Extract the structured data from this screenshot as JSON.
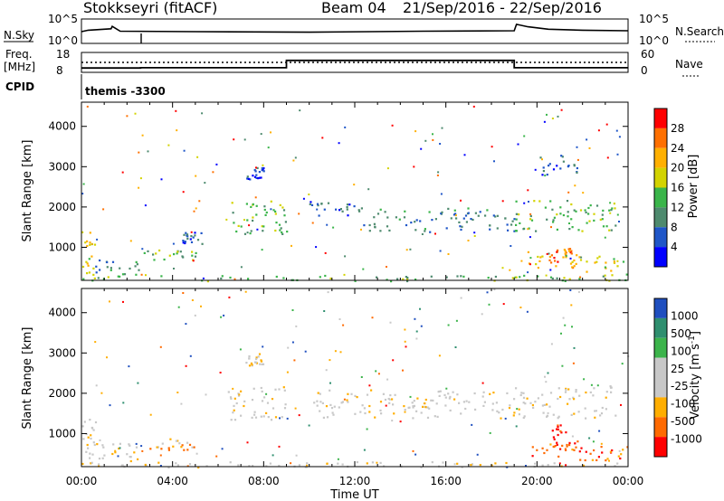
{
  "header": {
    "station": "Stokkseyri (fitACF)",
    "beam": "Beam 04",
    "date_range": "21/Sep/2016 - 22/Sep/2016"
  },
  "summary": {
    "nsky_label": "N.Sky",
    "nsky_top": "10^5",
    "nsky_bottom": "10^0",
    "nsearch_label": "N.Search",
    "freq_label": "Freq.",
    "freq_unit": "[MHz]",
    "freq_top": "18",
    "freq_bottom": "8",
    "nave_label": "Nave",
    "nave_top": "60",
    "nave_bottom": "0",
    "cpid_label": "CPID",
    "cpid_value": "themis -3300"
  },
  "x_axis": {
    "label": "Time UT",
    "ticks": [
      "00:00",
      "04:00",
      "08:00",
      "12:00",
      "16:00",
      "20:00",
      "00:00"
    ]
  },
  "colors": {
    "power": [
      "#0000ff",
      "#1f56c8",
      "#4e8a6e",
      "#3ab54a",
      "#d3d300",
      "#ffb000",
      "#ff7000",
      "#ff0000"
    ],
    "velocity": [
      "#ff0000",
      "#ff6a00",
      "#ffae00",
      "#c8c8c8",
      "#c8c8c8",
      "#3cb44b",
      "#2f8f6f",
      "#1f4fbf"
    ]
  },
  "chart_data": [
    {
      "type": "line",
      "title": "",
      "series": [
        {
          "name": "N.Sky",
          "x": [
            0,
            0.3,
            1.3,
            1.35,
            1.7,
            5,
            10,
            15,
            19,
            19.1,
            19.6,
            20.5,
            22,
            24
          ],
          "y": [
            2.4,
            2.7,
            3.0,
            3.5,
            2.5,
            2.4,
            2.3,
            2.5,
            2.6,
            3.9,
            3.4,
            2.9,
            2.7,
            2.6
          ]
        },
        {
          "name": "N.Search",
          "x": [
            0,
            24
          ],
          "y": [
            0,
            0
          ]
        }
      ],
      "xlim": [
        0,
        24
      ],
      "ylim": [
        0,
        5
      ],
      "y_ticks": [
        "10^0",
        "10^5"
      ]
    },
    {
      "type": "line",
      "series": [
        {
          "name": "Freq.",
          "x": [
            0,
            2.6,
            2.6,
            9.0,
            9.0,
            19.0,
            19.0,
            24
          ],
          "y": [
            10.2,
            10.2,
            10.3,
            10.3,
            14.0,
            14.0,
            10.3,
            10.3
          ]
        },
        {
          "name": "Nave",
          "x": [
            0,
            24
          ],
          "y": [
            30,
            30
          ]
        }
      ],
      "xlim": [
        0,
        24
      ],
      "ylim": [
        8,
        18
      ],
      "y_ticks": [
        "8",
        "18"
      ],
      "y2_ticks": [
        "0",
        "60"
      ]
    },
    {
      "type": "heatmap",
      "x": [
        0,
        24
      ],
      "xlim": [
        0,
        24
      ],
      "ylim": [
        180,
        4600
      ],
      "x_ticks": [
        "00:00",
        "04:00",
        "08:00",
        "12:00",
        "16:00",
        "20:00",
        "00:00"
      ],
      "ylabel": "Slant Range [km]",
      "y_ticks": [
        1000,
        2000,
        3000,
        4000
      ],
      "colorbar": {
        "label": "Power [dB]",
        "ticks": [
          4,
          8,
          12,
          16,
          20,
          24,
          28
        ],
        "range": [
          0,
          32
        ]
      },
      "regions": [
        {
          "t0": 0.0,
          "t1": 0.6,
          "r0": 180,
          "r1": 1500,
          "level": 4
        },
        {
          "t0": 0.6,
          "t1": 2.6,
          "r0": 300,
          "r1": 700,
          "level": 2
        },
        {
          "t0": 2.6,
          "t1": 5.1,
          "r0": 650,
          "r1": 950,
          "level": 3
        },
        {
          "t0": 4.4,
          "t1": 5.3,
          "r0": 1100,
          "r1": 1400,
          "level": 1
        },
        {
          "t0": 6.3,
          "t1": 9.0,
          "r0": 1350,
          "r1": 2200,
          "level": 3
        },
        {
          "t0": 7.2,
          "t1": 8.0,
          "r0": 2700,
          "r1": 3000,
          "level": 1
        },
        {
          "t0": 10.0,
          "t1": 12.0,
          "r0": 1800,
          "r1": 2150,
          "level": 1
        },
        {
          "t0": 12.0,
          "t1": 19.0,
          "r0": 1400,
          "r1": 2000,
          "level": 2
        },
        {
          "t0": 19.0,
          "t1": 23.5,
          "r0": 1400,
          "r1": 2200,
          "level": 3
        },
        {
          "t0": 19.5,
          "t1": 21.9,
          "r0": 500,
          "r1": 950,
          "level": 5
        },
        {
          "t0": 20.5,
          "t1": 21.5,
          "r0": 600,
          "r1": 1050,
          "level": 6
        },
        {
          "t0": 21.8,
          "t1": 24.0,
          "r0": 300,
          "r1": 800,
          "level": 4
        },
        {
          "t0": 20.0,
          "t1": 22.0,
          "r0": 2800,
          "r1": 3300,
          "level": 1
        },
        {
          "t0": 0.0,
          "t1": 24.0,
          "r0": 180,
          "r1": 320,
          "level": 3
        }
      ]
    },
    {
      "type": "heatmap",
      "x": [
        0,
        24
      ],
      "xlim": [
        0,
        24
      ],
      "ylim": [
        180,
        4600
      ],
      "x_ticks": [
        "00:00",
        "04:00",
        "08:00",
        "12:00",
        "16:00",
        "20:00",
        "00:00"
      ],
      "ylabel": "Slant Range [km]",
      "y_ticks": [
        1000,
        2000,
        3000,
        4000
      ],
      "colorbar": {
        "label": "Velocity [m s^-1]",
        "ticks": [
          1000,
          500,
          100,
          25,
          -25,
          -100,
          -500,
          -1000
        ]
      },
      "regions": [
        {
          "t0": 0.0,
          "t1": 0.6,
          "r0": 180,
          "r1": 1400,
          "level": 3
        },
        {
          "t0": 0.6,
          "t1": 2.6,
          "r0": 300,
          "r1": 800,
          "level": 3
        },
        {
          "t0": 2.6,
          "t1": 5.1,
          "r0": 600,
          "r1": 900,
          "level": 2
        },
        {
          "t0": 6.3,
          "t1": 9.0,
          "r0": 1350,
          "r1": 2200,
          "level": 3
        },
        {
          "t0": 7.2,
          "t1": 8.0,
          "r0": 2700,
          "r1": 3000,
          "level": 3
        },
        {
          "t0": 10.0,
          "t1": 19.0,
          "r0": 1400,
          "r1": 2100,
          "level": 3
        },
        {
          "t0": 19.0,
          "t1": 23.5,
          "r0": 1400,
          "r1": 2200,
          "level": 3
        },
        {
          "t0": 19.5,
          "t1": 22.0,
          "r0": 450,
          "r1": 900,
          "level": 1
        },
        {
          "t0": 20.6,
          "t1": 21.6,
          "r0": 600,
          "r1": 1300,
          "level": 0
        },
        {
          "t0": 21.8,
          "t1": 24.0,
          "r0": 350,
          "r1": 700,
          "level": 1
        },
        {
          "t0": 0.0,
          "t1": 24.0,
          "r0": 180,
          "r1": 320,
          "level": 3
        }
      ]
    }
  ]
}
